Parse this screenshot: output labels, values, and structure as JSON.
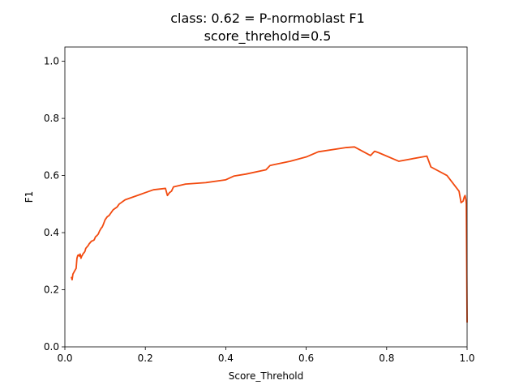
{
  "chart_data": {
    "type": "line",
    "title": "class: 0.62 = P-normoblast F1",
    "subtitle": "score_threhold=0.5",
    "xlabel": "Score_Threhold",
    "ylabel": "F1",
    "xlim": [
      0.0,
      1.0
    ],
    "ylim": [
      0.0,
      1.05
    ],
    "xticks": [
      "0.0",
      "0.2",
      "0.4",
      "0.6",
      "0.8",
      "1.0"
    ],
    "yticks": [
      "0.0",
      "0.2",
      "0.4",
      "0.6",
      "0.8",
      "1.0"
    ],
    "grid": false,
    "series": [
      {
        "color": "#f24a0f",
        "x": [
          0.016,
          0.018,
          0.02,
          0.022,
          0.024,
          0.026,
          0.028,
          0.03,
          0.032,
          0.034,
          0.036,
          0.038,
          0.04,
          0.042,
          0.044,
          0.046,
          0.048,
          0.05,
          0.052,
          0.055,
          0.058,
          0.06,
          0.063,
          0.066,
          0.07,
          0.073,
          0.076,
          0.08,
          0.083,
          0.086,
          0.09,
          0.093,
          0.096,
          0.1,
          0.105,
          0.11,
          0.115,
          0.12,
          0.125,
          0.13,
          0.135,
          0.14,
          0.145,
          0.15,
          0.16,
          0.17,
          0.18,
          0.19,
          0.2,
          0.21,
          0.22,
          0.25,
          0.255,
          0.26,
          0.265,
          0.27,
          0.3,
          0.35,
          0.4,
          0.42,
          0.45,
          0.5,
          0.51,
          0.52,
          0.56,
          0.6,
          0.63,
          0.7,
          0.72,
          0.76,
          0.77,
          0.78,
          0.83,
          0.9,
          0.91,
          0.95,
          0.98,
          0.985,
          0.99,
          0.993,
          0.995,
          0.997,
          0.998,
          0.999,
          1.0
        ],
        "y": [
          0.245,
          0.235,
          0.255,
          0.26,
          0.265,
          0.27,
          0.275,
          0.31,
          0.32,
          0.322,
          0.318,
          0.325,
          0.31,
          0.318,
          0.322,
          0.328,
          0.33,
          0.335,
          0.345,
          0.35,
          0.355,
          0.36,
          0.365,
          0.37,
          0.372,
          0.375,
          0.385,
          0.39,
          0.395,
          0.405,
          0.415,
          0.42,
          0.43,
          0.445,
          0.455,
          0.46,
          0.47,
          0.48,
          0.485,
          0.49,
          0.5,
          0.505,
          0.51,
          0.515,
          0.52,
          0.525,
          0.53,
          0.535,
          0.54,
          0.545,
          0.55,
          0.555,
          0.53,
          0.54,
          0.545,
          0.56,
          0.57,
          0.575,
          0.585,
          0.598,
          0.605,
          0.62,
          0.635,
          0.638,
          0.65,
          0.665,
          0.683,
          0.698,
          0.7,
          0.67,
          0.685,
          0.68,
          0.65,
          0.668,
          0.63,
          0.6,
          0.545,
          0.505,
          0.51,
          0.525,
          0.53,
          0.515,
          0.5,
          0.3,
          0.085
        ]
      }
    ]
  }
}
